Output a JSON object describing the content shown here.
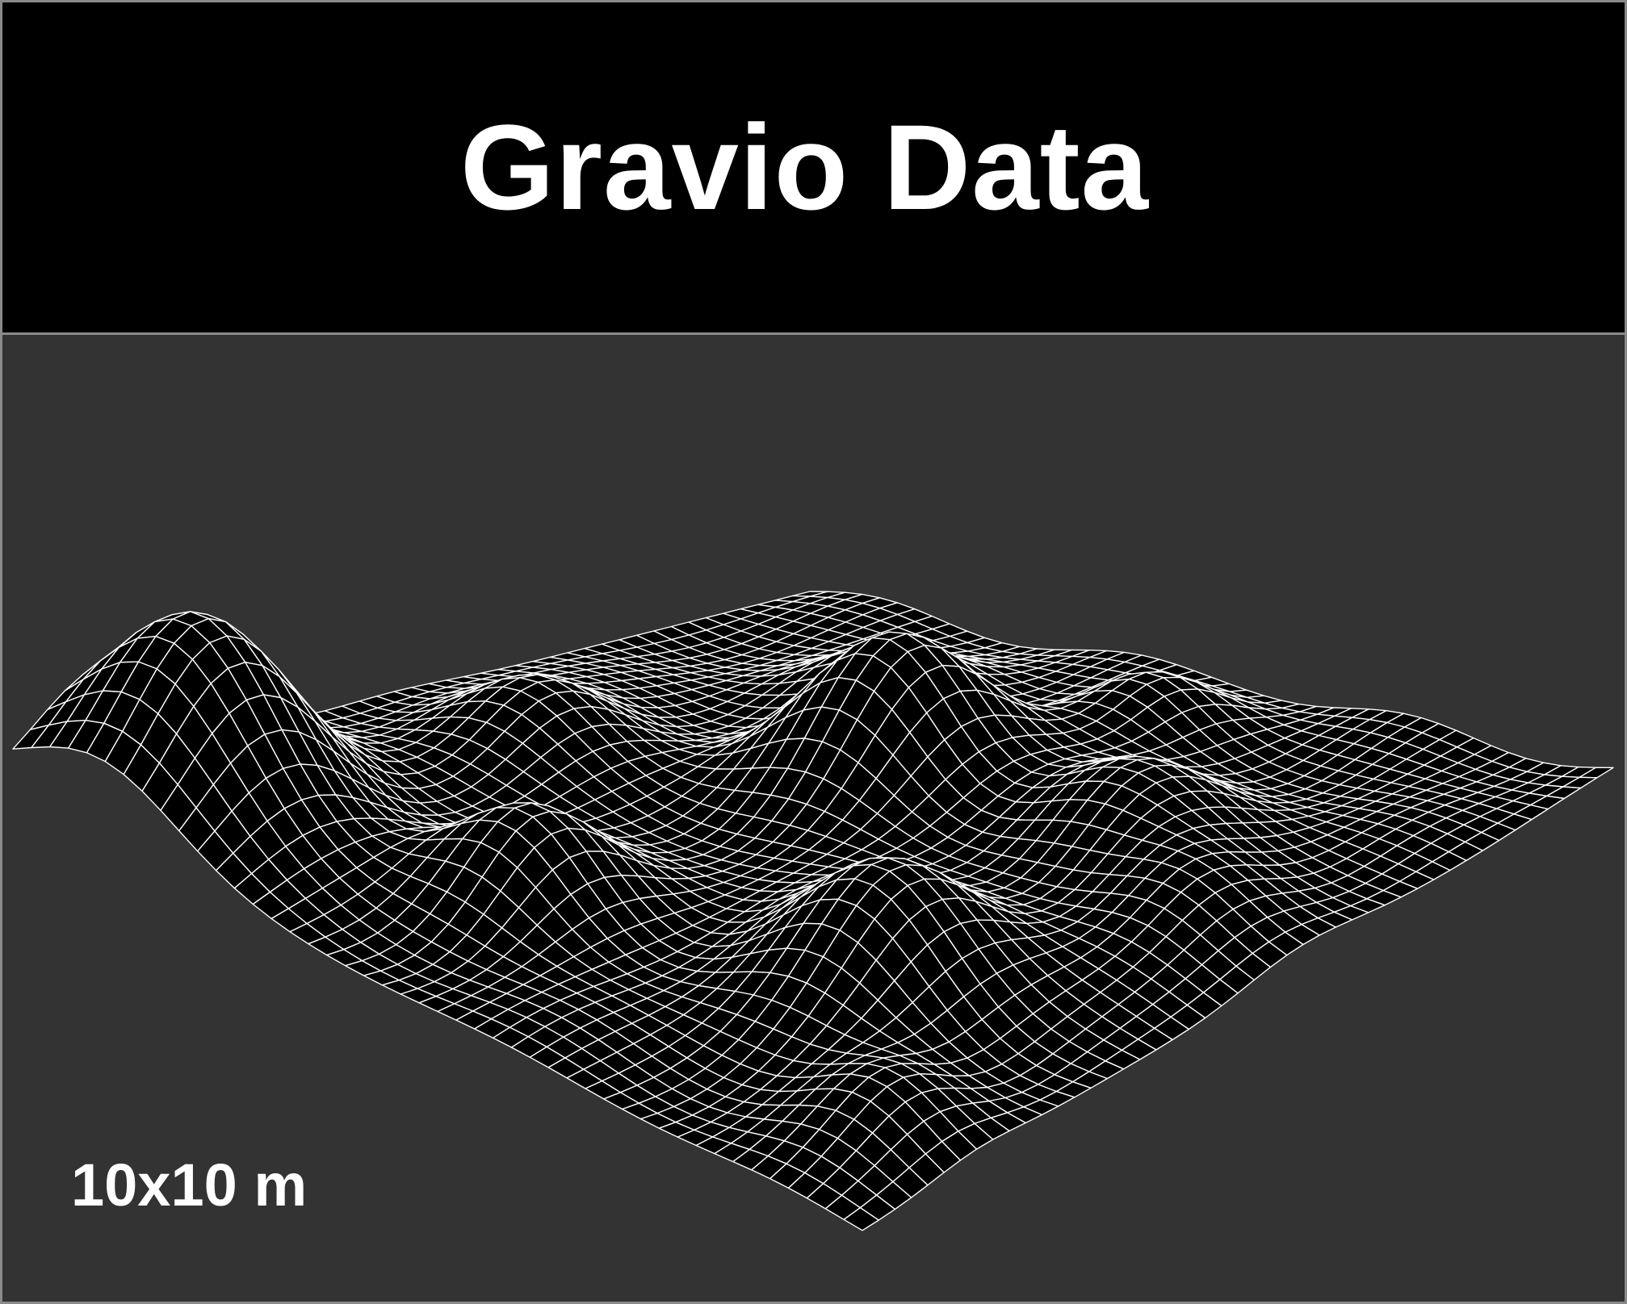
{
  "title": "Gravio Data",
  "scale_label": "10x10 m",
  "colors": {
    "header_bg": "#000000",
    "plot_bg": "#333333",
    "mesh_fill": "#000000",
    "mesh_line": "#ffffff",
    "border": "#8a8a8a"
  },
  "surface": {
    "type": "wireframe-surface",
    "grid_size": 46,
    "peaks": [
      {
        "u": 0.1,
        "v": 0.88,
        "height": 2.6,
        "spread": 0.09
      },
      {
        "u": 0.46,
        "v": 0.36,
        "height": 1.9,
        "spread": 0.085
      },
      {
        "u": 0.73,
        "v": 0.66,
        "height": 1.5,
        "spread": 0.085
      },
      {
        "u": 0.4,
        "v": 0.78,
        "height": 1.1,
        "spread": 0.07
      },
      {
        "u": 0.72,
        "v": 0.33,
        "height": 1.0,
        "spread": 0.08
      },
      {
        "u": 0.16,
        "v": 0.52,
        "height": 0.9,
        "spread": 0.07
      },
      {
        "u": 0.88,
        "v": 0.42,
        "height": 0.8,
        "spread": 0.07
      },
      {
        "u": 0.55,
        "v": 0.13,
        "height": 0.7,
        "spread": 0.06
      },
      {
        "u": 0.3,
        "v": 0.2,
        "height": 0.6,
        "spread": 0.06
      },
      {
        "u": 0.9,
        "v": 0.85,
        "height": 0.6,
        "spread": 0.06
      }
    ]
  }
}
